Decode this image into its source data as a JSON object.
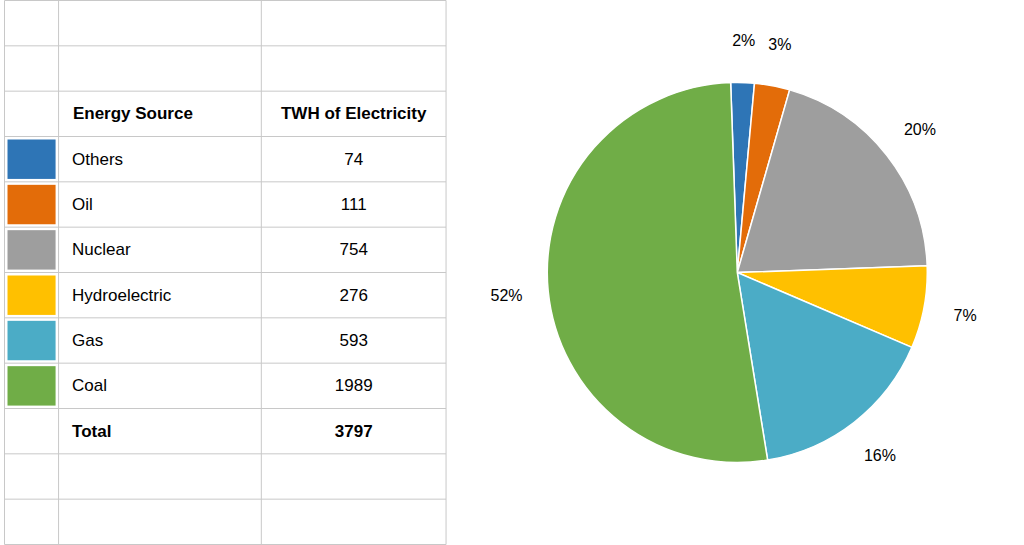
{
  "chart_data": [
    {
      "type": "table",
      "columns": [
        "Energy Source",
        "TWH of Electricity"
      ],
      "categories": [
        "Others",
        "Oil",
        "Nuclear",
        "Hydroelectric",
        "Gas",
        "Coal"
      ],
      "values": [
        74,
        111,
        754,
        276,
        593,
        1989
      ],
      "colors": [
        "#2E75B6",
        "#E36C09",
        "#9E9E9E",
        "#FFC000",
        "#4BACC6",
        "#70AD47"
      ],
      "total": {
        "label": "Total",
        "value": 3797
      }
    },
    {
      "type": "pie",
      "values": [
        2,
        3,
        20,
        7,
        16,
        52
      ],
      "value_labels": [
        "2%",
        "3%",
        "20%",
        "7%",
        "16%",
        "52%"
      ],
      "colors": [
        "#2E75B6",
        "#E36C09",
        "#9E9E9E",
        "#FFC000",
        "#4BACC6",
        "#70AD47"
      ],
      "data_labels": true
    }
  ]
}
